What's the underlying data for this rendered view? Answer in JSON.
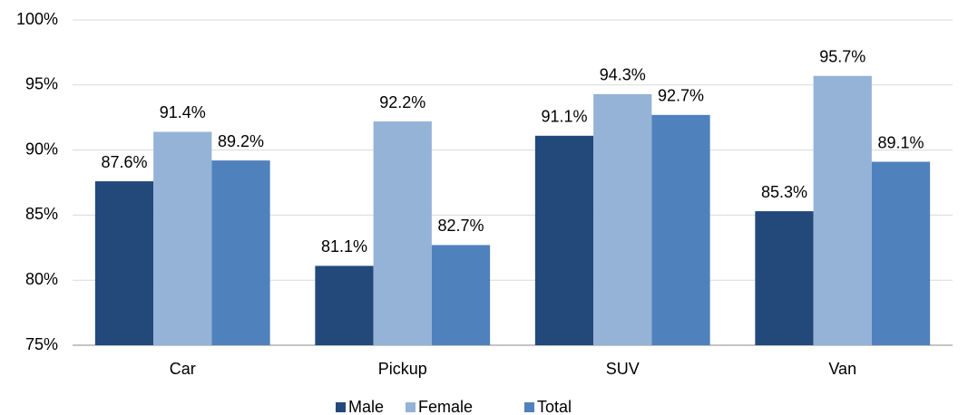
{
  "chart_data": {
    "type": "bar",
    "categories": [
      "Car",
      "Pickup",
      "SUV",
      "Van"
    ],
    "series": [
      {
        "name": "Male",
        "color": "#22497a",
        "values": [
          87.6,
          81.1,
          91.1,
          85.3
        ],
        "value_labels": [
          "87.6%",
          "81.1%",
          "91.1%",
          "85.3%"
        ]
      },
      {
        "name": "Female",
        "color": "#95b3d7",
        "values": [
          91.4,
          92.2,
          94.3,
          95.7
        ],
        "value_labels": [
          "91.4%",
          "92.2%",
          "94.3%",
          "95.7%"
        ]
      },
      {
        "name": "Total",
        "color": "#4f81bd",
        "values": [
          89.2,
          82.7,
          92.7,
          89.1
        ],
        "value_labels": [
          "89.2%",
          "82.7%",
          "92.7%",
          "89.1%"
        ]
      }
    ],
    "ylim": [
      75,
      100
    ],
    "yticks": [
      {
        "value": 75,
        "label": "75%"
      },
      {
        "value": 80,
        "label": "80%"
      },
      {
        "value": 85,
        "label": "85%"
      },
      {
        "value": 90,
        "label": "90%"
      },
      {
        "value": 95,
        "label": "95%"
      },
      {
        "value": 100,
        "label": "100%"
      }
    ],
    "grid": true,
    "legend": "bottom"
  }
}
